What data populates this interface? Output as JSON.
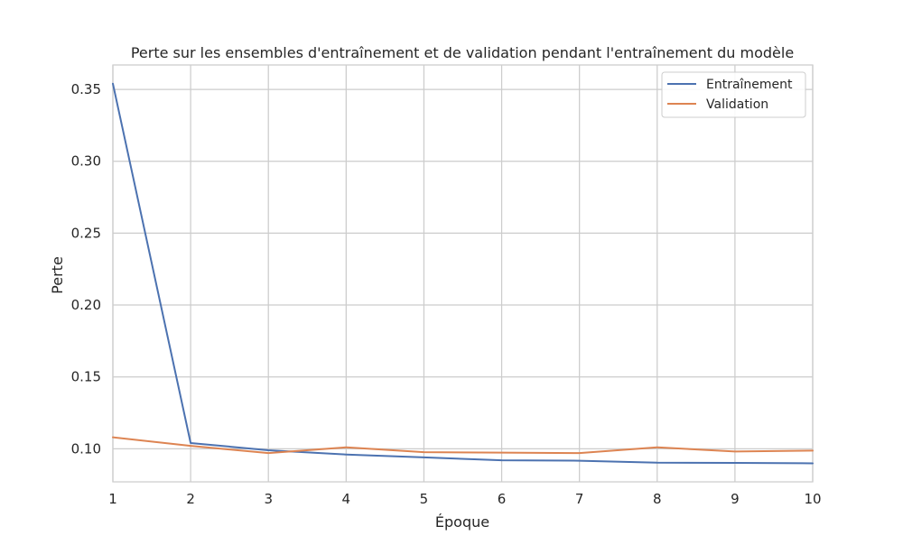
{
  "chart_data": {
    "type": "line",
    "title": "Perte sur les ensembles d'entraînement et de validation pendant l'entraînement du modèle",
    "xlabel": "Époque",
    "ylabel": "Perte",
    "x": [
      1,
      2,
      3,
      4,
      5,
      6,
      7,
      8,
      9,
      10
    ],
    "xlim": [
      1,
      10
    ],
    "ylim": [
      0.077,
      0.367
    ],
    "xticks": [
      "1",
      "2",
      "3",
      "4",
      "5",
      "6",
      "7",
      "8",
      "9",
      "10"
    ],
    "yticks": [
      "0.10",
      "0.15",
      "0.20",
      "0.25",
      "0.30",
      "0.35"
    ],
    "ytick_values": [
      0.1,
      0.15,
      0.2,
      0.25,
      0.3,
      0.35
    ],
    "grid": true,
    "legend_position": "top-right",
    "series": [
      {
        "name": "Entraînement",
        "color": "#4c72b0",
        "values": [
          0.354,
          0.104,
          0.099,
          0.096,
          0.094,
          0.092,
          0.0917,
          0.0903,
          0.0902,
          0.0899
        ]
      },
      {
        "name": "Validation",
        "color": "#dd8452",
        "values": [
          0.108,
          0.102,
          0.097,
          0.101,
          0.0976,
          0.0973,
          0.097,
          0.101,
          0.0981,
          0.0987
        ]
      }
    ]
  }
}
